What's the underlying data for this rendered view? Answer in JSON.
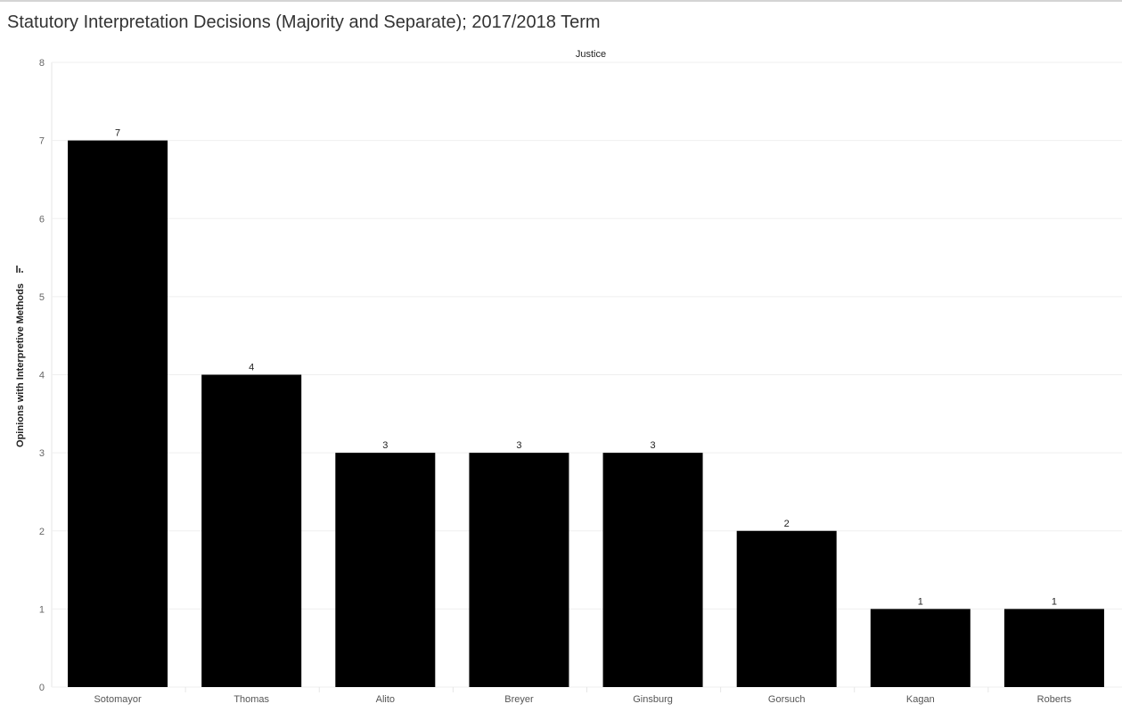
{
  "chart_data": {
    "type": "bar",
    "title": "Statutory Interpretation Decisions (Majority and Separate); 2017/2018 Term",
    "xlabel": "Justice",
    "ylabel": "Opinions with Interpretive Methods",
    "categories": [
      "Sotomayor",
      "Thomas",
      "Alito",
      "Breyer",
      "Ginsburg",
      "Gorsuch",
      "Kagan",
      "Roberts"
    ],
    "values": [
      7,
      4,
      3,
      3,
      3,
      2,
      1,
      1
    ],
    "ylim": [
      0,
      8
    ],
    "yticks": [
      0,
      1,
      2,
      3,
      4,
      5,
      6,
      7,
      8
    ],
    "grid": true,
    "bar_color": "#000000",
    "sort_icon": "sort-descending-icon"
  }
}
